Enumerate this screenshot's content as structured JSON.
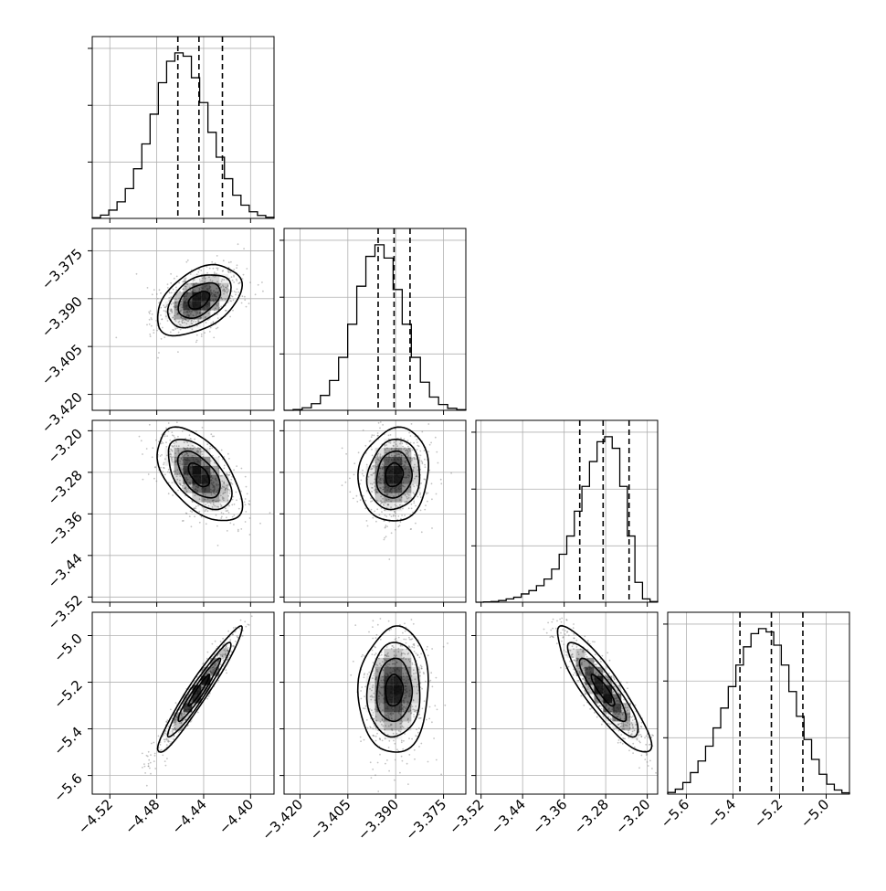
{
  "chart_data": {
    "type": "corner",
    "parameters": 4,
    "grid": true,
    "colors": {
      "frame": "#000000",
      "grid": "#b0b0b0",
      "points": "#7a7a7a",
      "density": "#000000"
    },
    "params": [
      {
        "center": -4.444,
        "lo": -4.462,
        "hi": -4.424,
        "std": 0.018,
        "range": [
          -4.535,
          -4.38
        ],
        "ticks": [
          -4.52,
          -4.48,
          -4.44,
          -4.4
        ],
        "tick_labels": [
          "−4.52",
          "−4.48",
          "−4.44",
          "−4.40"
        ],
        "hist": [
          0.005,
          0.02,
          0.05,
          0.1,
          0.18,
          0.3,
          0.45,
          0.63,
          0.82,
          0.95,
          1.0,
          0.98,
          0.85,
          0.7,
          0.52,
          0.37,
          0.24,
          0.14,
          0.08,
          0.04,
          0.018,
          0.007
        ]
      },
      {
        "center": -3.3905,
        "lo": -3.3955,
        "hi": -3.3855,
        "std": 0.0055,
        "range": [
          -3.425,
          -3.368
        ],
        "ticks": [
          -3.42,
          -3.405,
          -3.39,
          -3.375
        ],
        "tick_labels": [
          "−3.420",
          "−3.405",
          "−3.390",
          "−3.375"
        ],
        "hist": [
          0.0,
          0.005,
          0.015,
          0.04,
          0.09,
          0.18,
          0.32,
          0.52,
          0.75,
          0.93,
          1.0,
          0.92,
          0.73,
          0.52,
          0.32,
          0.17,
          0.08,
          0.035,
          0.012,
          0.004
        ]
      },
      {
        "center": -3.285,
        "lo": -3.33,
        "hi": -3.235,
        "std": 0.045,
        "range": [
          -3.53,
          -3.18
        ],
        "ticks": [
          -3.52,
          -3.44,
          -3.36,
          -3.28,
          -3.2
        ],
        "tick_labels": [
          "−3.52",
          "−3.44",
          "−3.36",
          "−3.28",
          "−3.20"
        ],
        "y_tick_labels": [
          "−3.20",
          "−3.28",
          "−3.36",
          "−3.44",
          "−3.52"
        ],
        "hist": [
          0.0,
          0.002,
          0.004,
          0.01,
          0.02,
          0.03,
          0.05,
          0.07,
          0.1,
          0.14,
          0.2,
          0.29,
          0.4,
          0.55,
          0.7,
          0.85,
          0.97,
          1.0,
          0.93,
          0.7,
          0.4,
          0.12,
          0.02,
          0.004
        ]
      },
      {
        "center": -5.235,
        "lo": -5.37,
        "hi": -5.1,
        "std": 0.135,
        "range": [
          -5.68,
          -4.9
        ],
        "ticks": [
          -5.6,
          -5.4,
          -5.2,
          -5.0
        ],
        "tick_labels": [
          "−5.6",
          "−5.4",
          "−5.2",
          "−5.0"
        ],
        "hist": [
          0.01,
          0.03,
          0.07,
          0.13,
          0.2,
          0.29,
          0.4,
          0.52,
          0.65,
          0.78,
          0.89,
          0.97,
          1.0,
          0.98,
          0.9,
          0.78,
          0.62,
          0.47,
          0.33,
          0.21,
          0.12,
          0.06,
          0.025,
          0.008
        ]
      }
    ],
    "pairs": [
      {
        "row": 1,
        "col": 0,
        "correlation": 0.45
      },
      {
        "row": 2,
        "col": 0,
        "correlation": -0.55
      },
      {
        "row": 2,
        "col": 1,
        "correlation": 0.1
      },
      {
        "row": 3,
        "col": 0,
        "correlation": 0.96
      },
      {
        "row": 3,
        "col": 1,
        "correlation": 0.05
      },
      {
        "row": 3,
        "col": 2,
        "correlation": -0.88
      }
    ]
  }
}
